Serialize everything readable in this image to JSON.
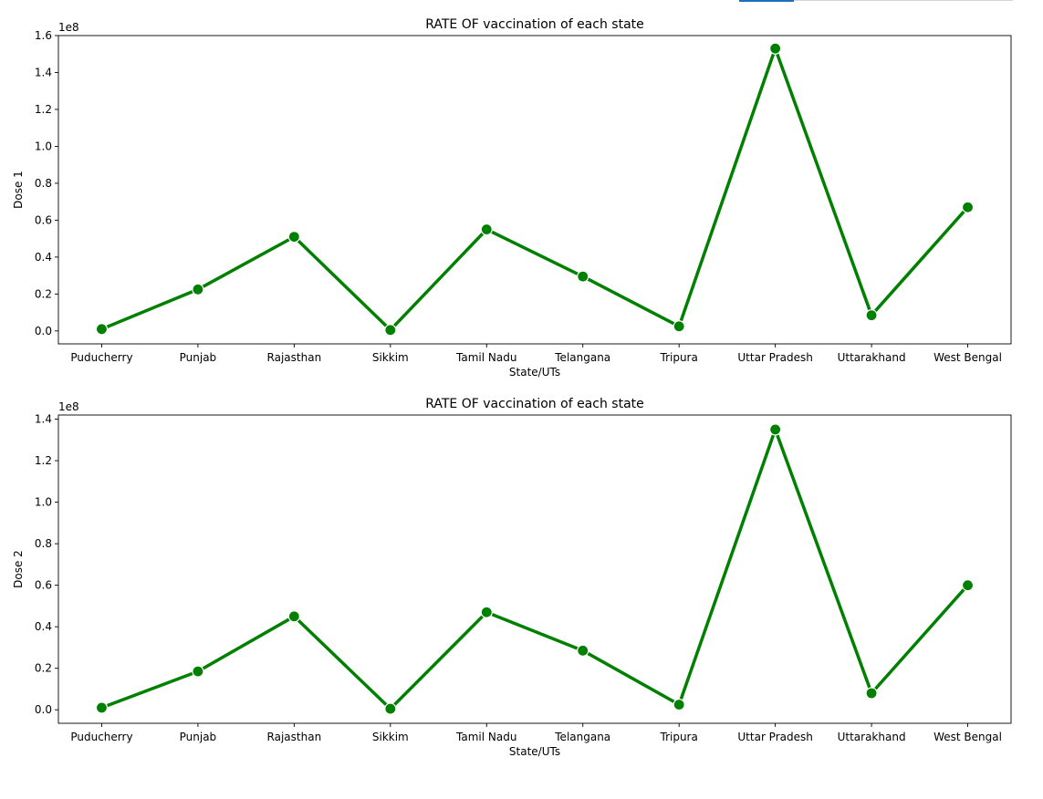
{
  "colors": {
    "line": "#008000",
    "marker_edge": "#ffffff"
  },
  "chart_data": [
    {
      "type": "line",
      "title": "RATE OF vaccination of each state",
      "xlabel": "State/UTs",
      "ylabel": "Dose 1",
      "offset_label": "1e8",
      "categories": [
        "Puducherry",
        "Punjab",
        "Rajasthan",
        "Sikkim",
        "Tamil Nadu",
        "Telangana",
        "Tripura",
        "Uttar Pradesh",
        "Uttarakhand",
        "West Bengal"
      ],
      "values": [
        0.01,
        0.225,
        0.51,
        0.005,
        0.55,
        0.295,
        0.025,
        1.53,
        0.085,
        0.67
      ],
      "ylim": [
        -0.07,
        1.6
      ],
      "yticks": [
        0.0,
        0.2,
        0.4,
        0.6,
        0.8,
        1.0,
        1.2,
        1.4,
        1.6
      ],
      "ytick_labels": [
        "0.0",
        "0.2",
        "0.4",
        "0.6",
        "0.8",
        "1.0",
        "1.2",
        "1.4",
        "1.6"
      ]
    },
    {
      "type": "line",
      "title": "RATE OF vaccination of each state",
      "xlabel": "State/UTs",
      "ylabel": "Dose 2",
      "offset_label": "1e8",
      "categories": [
        "Puducherry",
        "Punjab",
        "Rajasthan",
        "Sikkim",
        "Tamil Nadu",
        "Telangana",
        "Tripura",
        "Uttar Pradesh",
        "Uttarakhand",
        "West Bengal"
      ],
      "values": [
        0.01,
        0.185,
        0.45,
        0.005,
        0.47,
        0.285,
        0.025,
        1.35,
        0.08,
        0.6
      ],
      "ylim": [
        -0.065,
        1.42
      ],
      "yticks": [
        0.0,
        0.2,
        0.4,
        0.6,
        0.8,
        1.0,
        1.2,
        1.4
      ],
      "ytick_labels": [
        "0.0",
        "0.2",
        "0.4",
        "0.6",
        "0.8",
        "1.0",
        "1.2",
        "1.4"
      ]
    }
  ]
}
